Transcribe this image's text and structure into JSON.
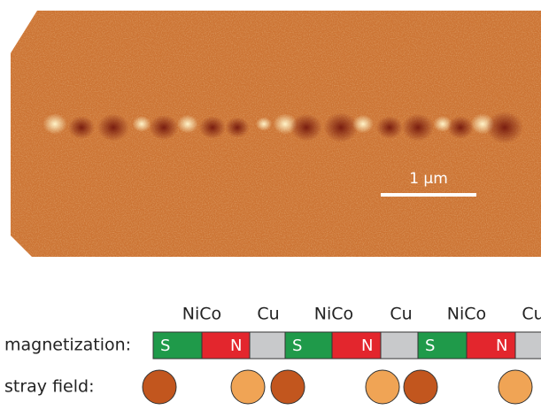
{
  "scale_bar": "1 μm",
  "materials": [
    "NiCo",
    "Cu",
    "NiCo",
    "Cu",
    "NiCo",
    "Cu"
  ],
  "magnetization_label": "magnetization:",
  "segments": [
    "S",
    "N",
    "",
    "S",
    "N",
    "",
    "S",
    "N",
    ""
  ],
  "stray_field_label": "stray field:"
}
